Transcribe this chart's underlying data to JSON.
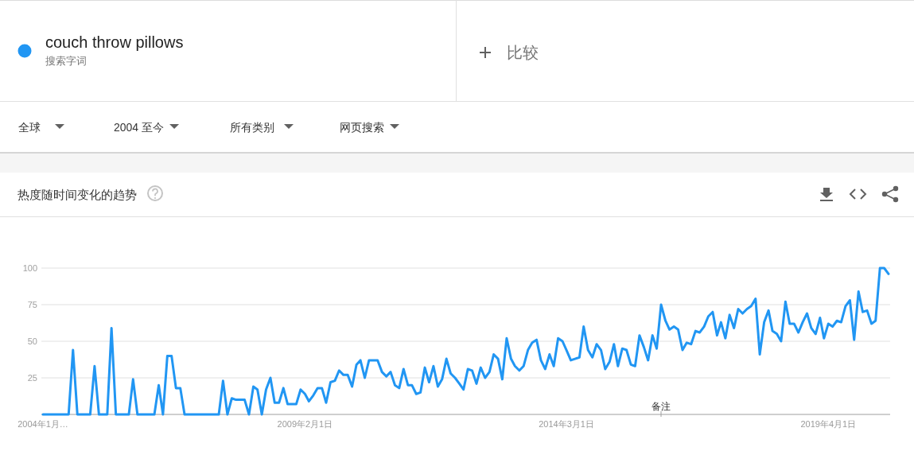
{
  "chart_data": {
    "type": "line",
    "title": "热度随时间变化的趋势",
    "annotations": [
      "搜索字词",
      "比较",
      "全球",
      "2004 至今",
      "所有类别",
      "网页搜索",
      "备注"
    ],
    "x": [
      "2004-01",
      "2004-07",
      "2004-08",
      "2004-09",
      "2004-12",
      "2005-01",
      "2005-02",
      "2005-04",
      "2005-05",
      "2005-06",
      "2005-09",
      "2005-10",
      "2005-11",
      "2006-03",
      "2006-04",
      "2006-05",
      "2006-06",
      "2006-07",
      "2006-08",
      "2006-09",
      "2006-10",
      "2007-06",
      "2007-07",
      "2007-08",
      "2007-09",
      "2007-10",
      "2007-11",
      "2007-12",
      "2008-01",
      "2008-02",
      "2008-03",
      "2008-04",
      "2008-05",
      "2008-06",
      "2008-07",
      "2008-08",
      "2008-09",
      "2008-10",
      "2008-11",
      "2008-12",
      "2009-01",
      "2009-02",
      "2009-03",
      "2009-04",
      "2009-05",
      "2009-06",
      "2009-07",
      "2009-08",
      "2009-09",
      "2009-10",
      "2009-11",
      "2009-12",
      "2010-01",
      "2010-02",
      "2010-03",
      "2010-04",
      "2010-05",
      "2010-06",
      "2010-07",
      "2010-08",
      "2010-09",
      "2010-10",
      "2010-11",
      "2010-12",
      "2011-01",
      "2011-02",
      "2011-03",
      "2011-04",
      "2011-05",
      "2011-06",
      "2011-07",
      "2011-08",
      "2011-09",
      "2011-10",
      "2011-11",
      "2011-12",
      "2012-01",
      "2012-02",
      "2012-03",
      "2012-04",
      "2012-05",
      "2012-06",
      "2012-07",
      "2012-08",
      "2012-09",
      "2012-10",
      "2012-11",
      "2012-12",
      "2013-01",
      "2013-02",
      "2013-03",
      "2013-04",
      "2013-05",
      "2013-06",
      "2013-07",
      "2013-08",
      "2013-09",
      "2013-10",
      "2013-11",
      "2013-12",
      "2014-01",
      "2014-02",
      "2014-03",
      "2014-04",
      "2014-05",
      "2014-06",
      "2014-07",
      "2014-08",
      "2014-09",
      "2014-10",
      "2014-11",
      "2014-12",
      "2015-01",
      "2015-02",
      "2015-03",
      "2015-04",
      "2015-05",
      "2015-06",
      "2015-07",
      "2015-08",
      "2015-09",
      "2015-10",
      "2015-11",
      "2015-12",
      "2016-01",
      "2016-02",
      "2016-03",
      "2016-04",
      "2016-05",
      "2016-06",
      "2016-07",
      "2016-08",
      "2016-09",
      "2016-10",
      "2016-11",
      "2016-12",
      "2017-01",
      "2017-02",
      "2017-03",
      "2017-04",
      "2017-05",
      "2017-06",
      "2017-07",
      "2017-08",
      "2017-09",
      "2017-10",
      "2017-11",
      "2017-12",
      "2018-01",
      "2018-02",
      "2018-03",
      "2018-04",
      "2018-05",
      "2018-06",
      "2018-07",
      "2018-08",
      "2018-09",
      "2018-10",
      "2018-11",
      "2018-12",
      "2019-01",
      "2019-02",
      "2019-03",
      "2019-04",
      "2019-05",
      "2019-06",
      "2019-07",
      "2019-08",
      "2019-09",
      "2019-10",
      "2019-11",
      "2019-12",
      "2020-01",
      "2020-02",
      "2020-03",
      "2020-04",
      "2020-05",
      "2020-06"
    ],
    "series": [
      {
        "name": "couch throw pillows",
        "color": "#2196f3",
        "values": [
          0,
          0,
          44,
          0,
          0,
          33,
          0,
          0,
          59,
          0,
          0,
          24,
          0,
          0,
          20,
          0,
          40,
          40,
          18,
          18,
          0,
          0,
          23,
          0,
          11,
          10,
          10,
          10,
          0,
          19,
          17,
          0,
          17,
          25,
          8,
          8,
          18,
          7,
          7,
          7,
          17,
          14,
          9,
          13,
          18,
          18,
          8,
          22,
          23,
          30,
          27,
          27,
          19,
          34,
          37,
          25,
          37,
          37,
          37,
          29,
          26,
          29,
          20,
          18,
          31,
          20,
          20,
          14,
          15,
          32,
          22,
          33,
          19,
          24,
          38,
          28,
          25,
          21,
          17,
          31,
          30,
          21,
          32,
          25,
          29,
          41,
          38,
          24,
          52,
          38,
          33,
          30,
          33,
          44,
          49,
          51,
          37,
          31,
          41,
          33,
          52,
          50,
          44,
          37,
          38,
          39,
          60,
          44,
          39,
          48,
          44,
          31,
          36,
          48,
          33,
          45,
          44,
          34,
          33,
          54,
          46,
          37,
          54,
          45,
          75,
          64,
          58,
          60,
          58,
          44,
          49,
          48,
          57,
          56,
          60,
          67,
          70,
          54,
          63,
          52,
          68,
          59,
          72,
          69,
          72,
          74,
          79,
          41,
          63,
          71,
          57,
          55,
          50,
          77,
          62,
          62,
          56,
          63,
          69,
          59,
          55,
          66,
          52,
          62,
          60,
          64,
          63,
          74,
          78,
          51,
          84,
          70,
          71,
          62,
          64,
          100,
          100,
          96
        ]
      }
    ],
    "xlim": [
      "2004-01",
      "2020-06"
    ],
    "xticks": [
      {
        "value": "2004-01-01",
        "label": "2004年1月…"
      },
      {
        "value": "2009-02-01",
        "label": "2009年2月1日"
      },
      {
        "value": "2014-03-01",
        "label": "2014年3月1日"
      },
      {
        "value": "2019-04-01",
        "label": "2019年4月1日"
      }
    ],
    "ylim": [
      0,
      100
    ],
    "yticks": [
      25,
      50,
      75,
      100
    ],
    "grid": "y",
    "legend": "top left"
  }
}
